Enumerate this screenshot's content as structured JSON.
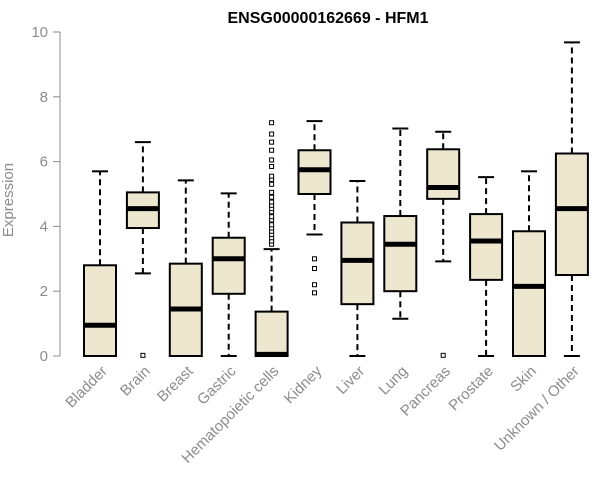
{
  "colors": {
    "box_fill": "#ede7d0",
    "box_stroke": "#000000",
    "axis": "#8c8c8c",
    "text_muted": "#8c8c8c"
  },
  "chart_data": {
    "type": "boxplot",
    "title": "ENSG00000162669 - HFM1",
    "xlabel": "",
    "ylabel": "Expression",
    "ylim": [
      0,
      10
    ],
    "yticks": [
      0,
      2,
      4,
      6,
      8,
      10
    ],
    "categories": [
      "Bladder",
      "Brain",
      "Breast",
      "Gastric",
      "Hematopoietic cells",
      "Kidney",
      "Liver",
      "Lung",
      "Pancreas",
      "Prostate",
      "Skin",
      "Unknown / Other"
    ],
    "boxes": [
      {
        "name": "Bladder",
        "whisker_low": 0,
        "q1": 0,
        "median": 0.95,
        "q3": 2.8,
        "whisker_high": 5.7,
        "outliers": []
      },
      {
        "name": "Brain",
        "whisker_low": 2.55,
        "q1": 3.95,
        "median": 4.55,
        "q3": 5.05,
        "whisker_high": 6.6,
        "outliers": [
          0.02
        ]
      },
      {
        "name": "Breast",
        "whisker_low": 0,
        "q1": 0,
        "median": 1.45,
        "q3": 2.85,
        "whisker_high": 5.42,
        "outliers": []
      },
      {
        "name": "Gastric",
        "whisker_low": 0,
        "q1": 1.92,
        "median": 3.0,
        "q3": 3.65,
        "whisker_high": 5.02,
        "outliers": []
      },
      {
        "name": "Hematopoietic cells",
        "whisker_low": 0,
        "q1": 0,
        "median": 0.05,
        "q3": 1.37,
        "whisker_high": 3.3,
        "outliers": [
          3.45,
          3.55,
          3.65,
          3.75,
          3.85,
          3.95,
          4.05,
          4.2,
          4.3,
          4.45,
          4.55,
          4.65,
          4.75,
          4.9,
          5.05,
          5.3,
          5.45,
          5.55,
          5.85,
          6.05,
          6.35,
          6.6,
          6.85,
          7.2
        ]
      },
      {
        "name": "Kidney",
        "whisker_low": 3.75,
        "q1": 5.0,
        "median": 5.75,
        "q3": 6.35,
        "whisker_high": 7.25,
        "outliers": [
          3.0,
          2.7,
          2.2,
          1.95
        ]
      },
      {
        "name": "Liver",
        "whisker_low": 0,
        "q1": 1.6,
        "median": 2.95,
        "q3": 4.12,
        "whisker_high": 5.4,
        "outliers": []
      },
      {
        "name": "Lung",
        "whisker_low": 1.15,
        "q1": 2.0,
        "median": 3.45,
        "q3": 4.32,
        "whisker_high": 7.02,
        "outliers": []
      },
      {
        "name": "Pancreas",
        "whisker_low": 2.92,
        "q1": 4.85,
        "median": 5.2,
        "q3": 6.38,
        "whisker_high": 6.92,
        "outliers": [
          0.02
        ]
      },
      {
        "name": "Prostate",
        "whisker_low": 0,
        "q1": 2.35,
        "median": 3.55,
        "q3": 4.38,
        "whisker_high": 5.52,
        "outliers": []
      },
      {
        "name": "Skin",
        "whisker_low": 0,
        "q1": 0,
        "median": 2.15,
        "q3": 3.85,
        "whisker_high": 5.7,
        "outliers": []
      },
      {
        "name": "Unknown / Other",
        "whisker_low": 0,
        "q1": 2.5,
        "median": 4.55,
        "q3": 6.25,
        "whisker_high": 9.68,
        "outliers": []
      }
    ]
  }
}
